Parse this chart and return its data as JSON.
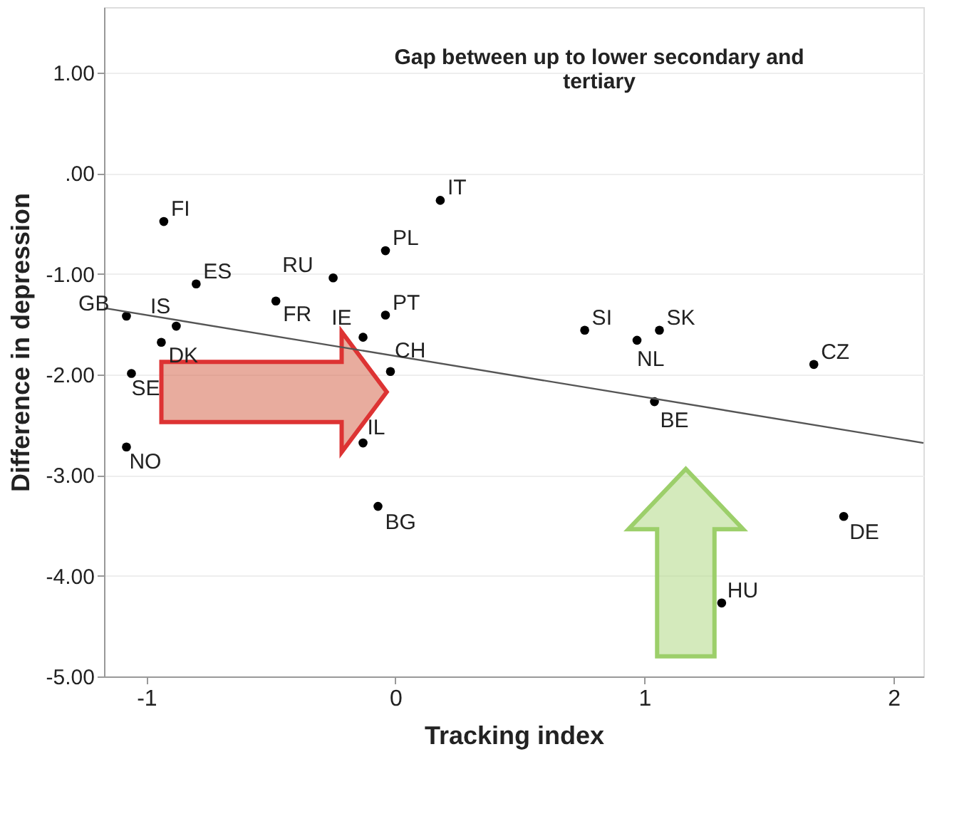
{
  "chart_data": {
    "type": "scatter",
    "title": "Gap between up to lower secondary and tertiary",
    "xlabel": "Tracking index",
    "ylabel": "Difference in depression",
    "xlim": [
      -1.17,
      2.12
    ],
    "ylim": [
      -5.0,
      1.65
    ],
    "xticks": [
      -1,
      0,
      1,
      2
    ],
    "yticks": [
      {
        "value": 1,
        "label": "1.00"
      },
      {
        "value": 0,
        "label": ".00"
      },
      {
        "value": -1,
        "label": "-1.00"
      },
      {
        "value": -2,
        "label": "-2.00"
      },
      {
        "value": -3,
        "label": "-3.00"
      },
      {
        "value": -4,
        "label": "-4.00"
      },
      {
        "value": -5,
        "label": "-5.00"
      }
    ],
    "grid": "y",
    "series": [
      {
        "marker": "circle",
        "color": "#000000",
        "x": [
          -0.93,
          -0.8,
          -1.08,
          -0.88,
          -0.94,
          -1.06,
          -1.08,
          -0.25,
          -0.48,
          -0.04,
          0.18,
          -0.04,
          -0.13,
          -0.02,
          -0.13,
          -0.07,
          0.76,
          0.97,
          1.06,
          1.04,
          1.68,
          1.8,
          1.31
        ],
        "values": [
          -0.48,
          -1.1,
          -1.42,
          -1.52,
          -1.68,
          -1.99,
          -2.72,
          -1.04,
          -1.27,
          -0.77,
          -0.27,
          -1.41,
          -1.63,
          -1.97,
          -2.68,
          -3.31,
          -1.56,
          -1.66,
          -1.56,
          -2.27,
          -1.9,
          -3.41,
          -4.27
        ]
      },
      {
        "type": "line",
        "marker": "none",
        "color": "#555555",
        "x": [
          -1.17,
          2.12
        ],
        "values": [
          -1.34,
          -2.68
        ]
      }
    ],
    "annotations": [
      {
        "text": "FI",
        "x": -0.93,
        "y": -0.48
      },
      {
        "text": "ES",
        "x": -0.8,
        "y": -1.1
      },
      {
        "text": "GB",
        "x": -1.08,
        "y": -1.42
      },
      {
        "text": "IS",
        "x": -0.88,
        "y": -1.52
      },
      {
        "text": "DK",
        "x": -0.94,
        "y": -1.68
      },
      {
        "text": "SE",
        "x": -1.06,
        "y": -1.99
      },
      {
        "text": "NO",
        "x": -1.08,
        "y": -2.72
      },
      {
        "text": "RU",
        "x": -0.25,
        "y": -1.04
      },
      {
        "text": "FR",
        "x": -0.48,
        "y": -1.27
      },
      {
        "text": "PL",
        "x": -0.04,
        "y": -0.77
      },
      {
        "text": "IT",
        "x": 0.18,
        "y": -0.27
      },
      {
        "text": "PT",
        "x": -0.04,
        "y": -1.41
      },
      {
        "text": "IE",
        "x": -0.13,
        "y": -1.63
      },
      {
        "text": "CH",
        "x": -0.02,
        "y": -1.97
      },
      {
        "text": "IL",
        "x": -0.13,
        "y": -2.68
      },
      {
        "text": "BG",
        "x": -0.07,
        "y": -3.31
      },
      {
        "text": "SI",
        "x": 0.76,
        "y": -1.56
      },
      {
        "text": "NL",
        "x": 0.97,
        "y": -1.66
      },
      {
        "text": "SK",
        "x": 1.06,
        "y": -1.56
      },
      {
        "text": "BE",
        "x": 1.04,
        "y": -2.27
      },
      {
        "text": "CZ",
        "x": 1.68,
        "y": -1.9
      },
      {
        "text": "DE",
        "x": 1.8,
        "y": -3.41
      },
      {
        "text": "HU",
        "x": 1.31,
        "y": -4.27
      }
    ]
  }
}
